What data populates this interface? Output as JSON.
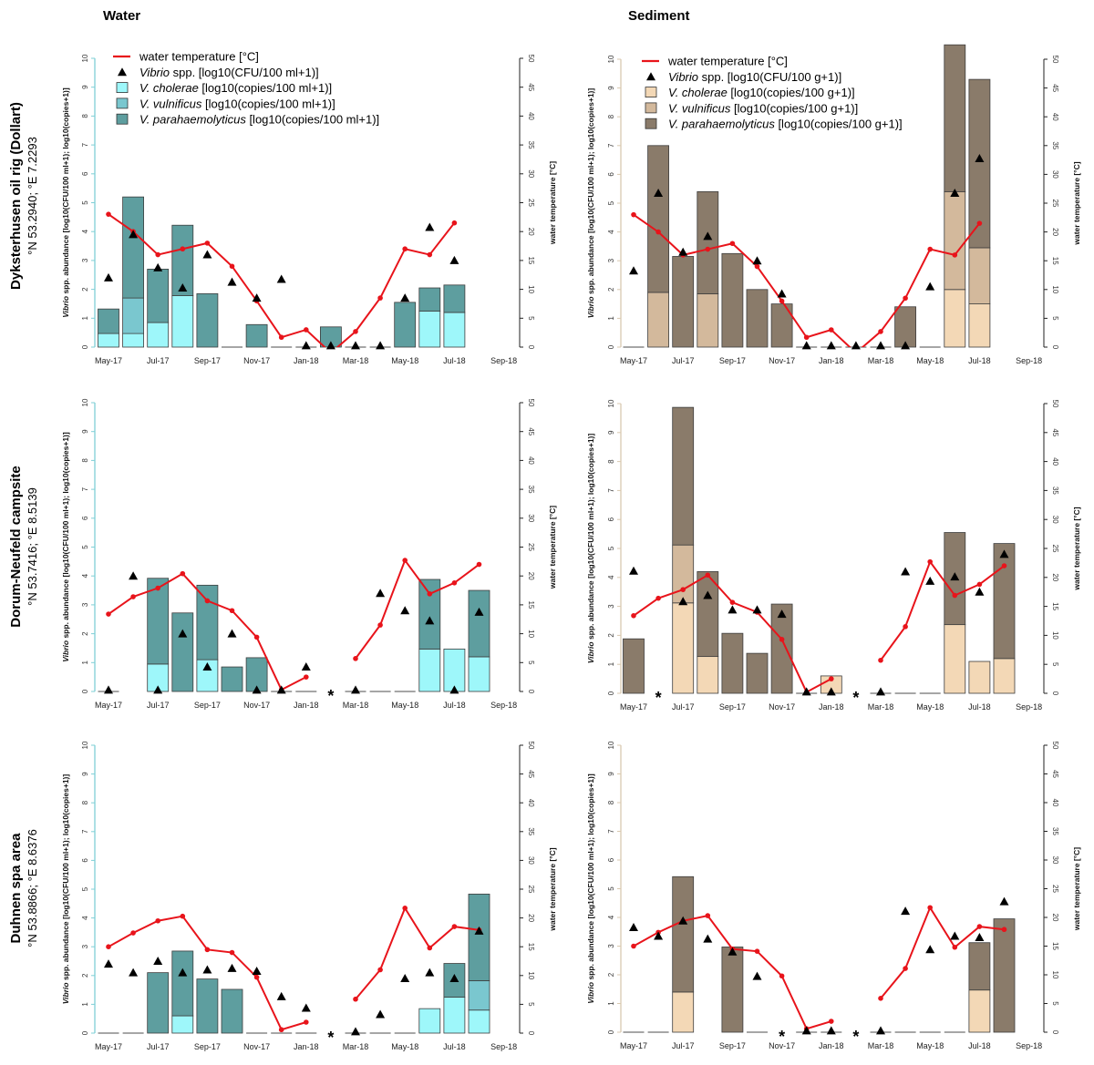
{
  "columns": {
    "water": "Water",
    "sediment": "Sediment"
  },
  "rows": [
    {
      "name": "Dyksterhusen oil rig (Dollart)",
      "coords": "°N 53.2940; °E 7.2293"
    },
    {
      "name": "Dorum-Neufeld campsite",
      "coords": "°N 53.7416; °E 8.5139"
    },
    {
      "name": "Duhnen spa area",
      "coords": "°N 53.8866; °E 8.6376"
    }
  ],
  "axes": {
    "y_left_label_italic": "Vibrio",
    "y_left_label_rest": " spp. abundance [log10(CFU/100 ml+1); log10(copies+1)]",
    "y_right_label": "water temperature [°C]",
    "y_left_ticks": [
      "0",
      "1",
      "2",
      "3",
      "4",
      "5",
      "6",
      "7",
      "8",
      "9",
      "10"
    ],
    "y_right_ticks": [
      "0",
      "5",
      "10",
      "15",
      "20",
      "25",
      "30",
      "35",
      "40",
      "45",
      "50"
    ],
    "x_ticks": [
      "May-17",
      "Jul-17",
      "Sep-17",
      "Nov-17",
      "Jan-18",
      "Mar-18",
      "May-18",
      "Jul-18",
      "Sep-18"
    ],
    "missing_marker": "*"
  },
  "colors": {
    "temperature": "#e8141b",
    "water": {
      "cholerae": "#9ef7fa",
      "vulnificus": "#7ac7cf",
      "parahaemolyticus": "#5e9e9f",
      "axis": "#7fcfd6"
    },
    "sediment": {
      "cholerae": "#f3d8b6",
      "vulnificus": "#d3b99c",
      "parahaemolyticus": "#8a7b6a",
      "axis": "#d9c9b0"
    }
  },
  "legend": {
    "water": [
      {
        "italic": "",
        "text": "water temperature [°C]",
        "symbol": "line"
      },
      {
        "italic": "Vibrio",
        "text": " spp. [log10(CFU/100 ml+1)]",
        "symbol": "triangle"
      },
      {
        "italic": "V. cholerae",
        "text": " [log10(copies/100 ml+1)]",
        "symbol": "cholerae"
      },
      {
        "italic": "V. vulnificus",
        "text": " [log10(copies/100 ml+1)]",
        "symbol": "vulnificus"
      },
      {
        "italic": "V. parahaemolyticus",
        "text": " [log10(copies/100 ml+1)]",
        "symbol": "parahaemolyticus"
      }
    ],
    "sediment": [
      {
        "italic": "",
        "text": "water temperature [°C]",
        "symbol": "line"
      },
      {
        "italic": "Vibrio",
        "text": " spp. [log10(CFU/100 g+1)]",
        "symbol": "triangle"
      },
      {
        "italic": "V. cholerae",
        "text": " [log10(copies/100 g+1)]",
        "symbol": "cholerae"
      },
      {
        "italic": "V. vulnificus",
        "text": " [log10(copies/100 g+1)]",
        "symbol": "vulnificus"
      },
      {
        "italic": "V. parahaemolyticus",
        "text": " [log10(copies/100 g+1)]",
        "symbol": "parahaemolyticus"
      }
    ]
  },
  "chart_data": [
    {
      "type": "bar",
      "stacked": true,
      "row": 0,
      "column": "water",
      "ylim": [
        0,
        10
      ],
      "y2lim": [
        0,
        50
      ],
      "xlim": [
        "May-17",
        "Sep-18"
      ],
      "grid": false,
      "legend_position": "top-left",
      "categories": [
        "May-17",
        "Jun-17",
        "Jul-17",
        "Aug-17",
        "Sep-17",
        "Oct-17",
        "Nov-17",
        "Dec-17",
        "Jan-18",
        "Feb-18",
        "Mar-18",
        "Apr-18",
        "May-18",
        "Jun-18",
        "Jul-18",
        "Aug-18"
      ],
      "temperature": [
        23,
        20,
        16,
        17,
        18,
        14,
        8,
        1.7,
        3,
        -1,
        2.7,
        8.5,
        17,
        16,
        21.5,
        null
      ],
      "vibrio_spp": [
        2.4,
        3.9,
        2.75,
        2.05,
        3.2,
        2.25,
        1.7,
        2.35,
        0.05,
        0.05,
        0.05,
        0.05,
        1.7,
        4.15,
        3.0,
        null
      ],
      "cholerae": [
        0.47,
        0.47,
        0.85,
        1.78,
        0,
        0,
        0,
        0,
        0,
        0,
        0,
        0,
        0,
        1.25,
        1.2,
        null
      ],
      "vulnificus": [
        0,
        1.23,
        0,
        0,
        0,
        0,
        0,
        0,
        0,
        0,
        0,
        0,
        0,
        0,
        0,
        null
      ],
      "parahaemolyticus": [
        0.85,
        3.5,
        1.85,
        2.44,
        1.85,
        0,
        0.78,
        0,
        0,
        0.7,
        0,
        0,
        1.55,
        0.8,
        0.95,
        null
      ],
      "missing": []
    },
    {
      "type": "bar",
      "stacked": true,
      "row": 0,
      "column": "sediment",
      "ylim": [
        0,
        10
      ],
      "y2lim": [
        0,
        50
      ],
      "xlim": [
        "May-17",
        "Sep-18"
      ],
      "grid": false,
      "legend_position": "top-left",
      "categories": [
        "May-17",
        "Jun-17",
        "Jul-17",
        "Aug-17",
        "Sep-17",
        "Oct-17",
        "Nov-17",
        "Dec-17",
        "Jan-18",
        "Feb-18",
        "Mar-18",
        "Apr-18",
        "May-18",
        "Jun-18",
        "Jul-18",
        "Aug-18"
      ],
      "temperature": [
        23,
        20,
        16,
        17,
        18,
        14,
        8,
        1.7,
        3,
        -1,
        2.7,
        8.5,
        17,
        16,
        21.5,
        null
      ],
      "vibrio_spp": [
        2.65,
        5.35,
        3.3,
        3.85,
        null,
        3.0,
        1.85,
        0.05,
        0.05,
        0.05,
        0.05,
        0.05,
        2.1,
        5.35,
        6.55,
        null
      ],
      "cholerae": [
        0,
        0,
        0,
        0,
        0,
        0,
        0,
        0,
        0,
        0,
        0,
        0,
        0,
        2.0,
        1.5,
        null
      ],
      "vulnificus": [
        0,
        1.9,
        0,
        1.85,
        0,
        0,
        0,
        0,
        0,
        0,
        0,
        0,
        0,
        3.4,
        1.95,
        null
      ],
      "parahaemolyticus": [
        0,
        5.1,
        3.15,
        3.55,
        3.25,
        2.0,
        1.5,
        0,
        0,
        0,
        0,
        1.4,
        0,
        5.1,
        5.85,
        null
      ],
      "missing": []
    },
    {
      "type": "bar",
      "stacked": true,
      "row": 1,
      "column": "water",
      "ylim": [
        0,
        10
      ],
      "y2lim": [
        0,
        50
      ],
      "xlim": [
        "May-17",
        "Sep-18"
      ],
      "grid": false,
      "categories": [
        "May-17",
        "Jun-17",
        "Jul-17",
        "Aug-17",
        "Sep-17",
        "Oct-17",
        "Nov-17",
        "Dec-17",
        "Jan-18",
        "Feb-18",
        "Mar-18",
        "Apr-18",
        "May-18",
        "Jun-18",
        "Jul-18",
        "Aug-18"
      ],
      "temperature": [
        13.4,
        16.4,
        17.9,
        20.4,
        15.7,
        14,
        9.4,
        0.3,
        2.5,
        null,
        5.7,
        11.5,
        22.7,
        16.9,
        18.8,
        22
      ],
      "vibrio_spp": [
        0.05,
        4.0,
        0.05,
        2.0,
        0.85,
        2.0,
        0.05,
        0.05,
        0.85,
        null,
        0.05,
        3.4,
        2.8,
        2.45,
        0.05,
        2.75
      ],
      "cholerae": [
        0,
        null,
        0.95,
        0,
        1.1,
        0,
        0,
        0,
        0,
        null,
        0,
        0,
        0,
        1.47,
        1.47,
        1.2
      ],
      "vulnificus": [
        0,
        null,
        0,
        0,
        0,
        0,
        0,
        0,
        0,
        null,
        0,
        0,
        0,
        0,
        0,
        0
      ],
      "parahaemolyticus": [
        0,
        null,
        2.97,
        2.72,
        2.58,
        0.85,
        1.17,
        0,
        0,
        null,
        0,
        0,
        0,
        2.41,
        0,
        2.3
      ],
      "missing": [
        "Feb-18"
      ]
    },
    {
      "type": "bar",
      "stacked": true,
      "row": 1,
      "column": "sediment",
      "ylim": [
        0,
        10
      ],
      "y2lim": [
        0,
        50
      ],
      "xlim": [
        "May-17",
        "Sep-18"
      ],
      "grid": false,
      "categories": [
        "May-17",
        "Jun-17",
        "Jul-17",
        "Aug-17",
        "Sep-17",
        "Oct-17",
        "Nov-17",
        "Dec-17",
        "Jan-18",
        "Feb-18",
        "Mar-18",
        "Apr-18",
        "May-18",
        "Jun-18",
        "Jul-18",
        "Aug-18"
      ],
      "temperature": [
        13.4,
        16.4,
        17.9,
        20.4,
        15.7,
        14,
        9.3,
        0.2,
        2.5,
        null,
        5.7,
        11.5,
        22.7,
        16.9,
        18.8,
        22
      ],
      "vibrio_spp": [
        4.22,
        null,
        3.17,
        3.38,
        2.88,
        2.88,
        2.73,
        0.05,
        0.05,
        null,
        0.05,
        4.2,
        3.87,
        4.02,
        3.5,
        4.8
      ],
      "cholerae": [
        0,
        null,
        3.12,
        1.27,
        0,
        0,
        0,
        0,
        0.6,
        null,
        0,
        0,
        0,
        2.37,
        1.1,
        1.2
      ],
      "vulnificus": [
        0,
        null,
        2.0,
        0,
        0,
        0,
        0,
        0,
        0,
        null,
        0,
        0,
        0,
        0,
        0,
        0
      ],
      "parahaemolyticus": [
        1.88,
        null,
        4.75,
        2.93,
        2.07,
        1.38,
        3.08,
        0,
        0,
        null,
        0,
        0,
        0,
        3.18,
        0,
        3.97
      ],
      "missing": [
        "Jun-17",
        "Feb-18"
      ]
    },
    {
      "type": "bar",
      "stacked": true,
      "row": 2,
      "column": "water",
      "ylim": [
        0,
        10
      ],
      "y2lim": [
        0,
        50
      ],
      "xlim": [
        "May-17",
        "Sep-18"
      ],
      "grid": false,
      "categories": [
        "May-17",
        "Jun-17",
        "Jul-17",
        "Aug-17",
        "Sep-17",
        "Oct-17",
        "Nov-17",
        "Dec-17",
        "Jan-18",
        "Feb-18",
        "Mar-18",
        "Apr-18",
        "May-18",
        "Jun-18",
        "Jul-18",
        "Aug-18"
      ],
      "temperature": [
        15,
        17.4,
        19.5,
        20.3,
        14.5,
        14,
        9.7,
        0.6,
        1.9,
        null,
        5.9,
        11,
        21.7,
        14.8,
        18.5,
        17.9
      ],
      "vibrio_spp": [
        2.4,
        2.1,
        2.5,
        2.1,
        2.2,
        2.25,
        2.15,
        1.27,
        0.87,
        null,
        0.05,
        0.65,
        1.9,
        2.1,
        1.9,
        3.55
      ],
      "cholerae": [
        0,
        0,
        0,
        0.6,
        0,
        0,
        0,
        0,
        0,
        null,
        0,
        0,
        0,
        0.85,
        1.25,
        0.8
      ],
      "vulnificus": [
        0,
        0,
        0,
        0,
        0,
        0,
        0,
        0,
        0,
        null,
        0,
        0,
        0,
        0,
        0,
        1.02
      ],
      "parahaemolyticus": [
        0,
        0,
        2.1,
        2.25,
        1.88,
        1.52,
        0,
        0,
        0,
        null,
        0,
        0,
        0,
        0,
        1.17,
        3.01
      ],
      "missing": [
        "Feb-18"
      ]
    },
    {
      "type": "bar",
      "stacked": true,
      "row": 2,
      "column": "sediment",
      "ylim": [
        0,
        10
      ],
      "y2lim": [
        0,
        50
      ],
      "xlim": [
        "May-17",
        "Sep-18"
      ],
      "grid": false,
      "categories": [
        "May-17",
        "Jun-17",
        "Jul-17",
        "Aug-17",
        "Sep-17",
        "Oct-17",
        "Nov-17",
        "Dec-17",
        "Jan-18",
        "Feb-18",
        "Mar-18",
        "Apr-18",
        "May-18",
        "Jun-18",
        "Jul-18",
        "Aug-18"
      ],
      "temperature": [
        15,
        17.4,
        19.4,
        20.3,
        14.5,
        14.1,
        9.8,
        0.6,
        1.9,
        null,
        5.9,
        11.1,
        21.7,
        14.8,
        18.4,
        17.9
      ],
      "vibrio_spp": [
        3.65,
        3.35,
        3.88,
        3.25,
        2.8,
        1.95,
        null,
        0.05,
        0.05,
        null,
        0.05,
        4.22,
        2.88,
        3.35,
        3.3,
        4.55
      ],
      "cholerae": [
        0,
        0,
        1.4,
        null,
        0,
        0,
        null,
        0,
        0,
        null,
        0,
        0,
        0,
        0,
        1.47,
        0
      ],
      "vulnificus": [
        0,
        0,
        0,
        null,
        0,
        0,
        null,
        0,
        0,
        null,
        0,
        0,
        0,
        0,
        0,
        0
      ],
      "parahaemolyticus": [
        0,
        0,
        4.02,
        null,
        2.97,
        0,
        null,
        0,
        0,
        null,
        0,
        0,
        0,
        0,
        1.65,
        3.95
      ],
      "missing": [
        "Nov-17",
        "Feb-18"
      ]
    }
  ]
}
